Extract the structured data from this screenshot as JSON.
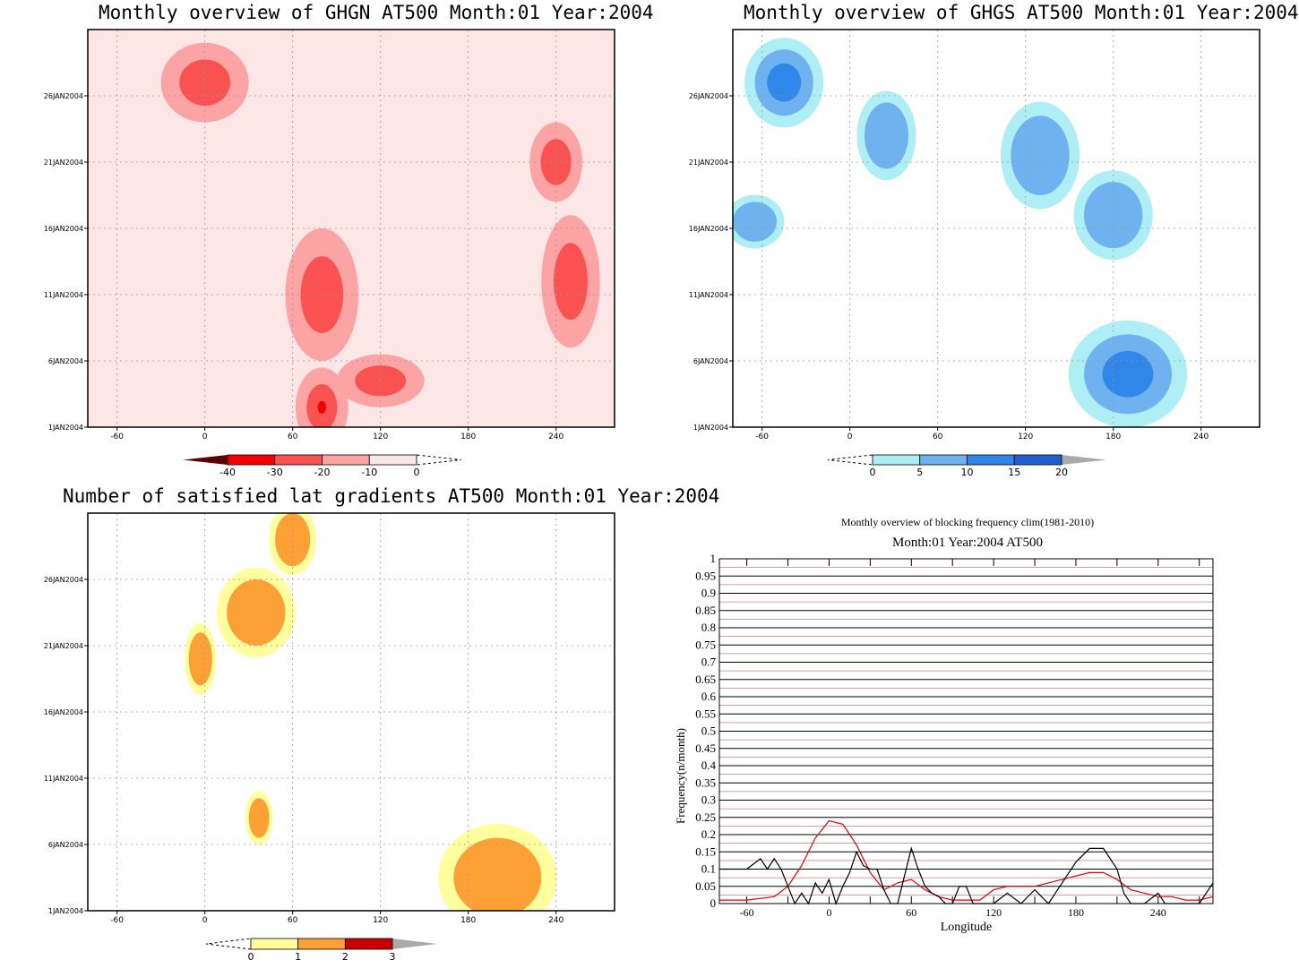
{
  "chart_data": [
    {
      "type": "heatmap",
      "title": "Monthly overview of GHGN AT500 Month:01 Year:2004",
      "x_ticks": [
        "-60",
        "0",
        "60",
        "120",
        "180",
        "240"
      ],
      "y_ticks": [
        "1JAN2004",
        "6JAN2004",
        "11JAN2004",
        "16JAN2004",
        "21JAN2004",
        "26JAN2004"
      ],
      "colorbar_ticks": [
        "-40",
        "-30",
        "-20",
        "-10",
        "0"
      ],
      "colors": [
        "#ffffff",
        "#fde6e6",
        "#fca3a3",
        "#fa5252",
        "#f50000",
        "#5a0000"
      ],
      "blobs": [
        {
          "x": 0,
          "y": 27,
          "rx": 30,
          "ry": 3,
          "level": 3
        },
        {
          "x": 80,
          "y": 11,
          "rx": 25,
          "ry": 5,
          "level": 3
        },
        {
          "x": 80,
          "y": 2.5,
          "rx": 18,
          "ry": 3,
          "level": 4
        },
        {
          "x": 250,
          "y": 12,
          "rx": 20,
          "ry": 5,
          "level": 3
        },
        {
          "x": 240,
          "y": 21,
          "rx": 18,
          "ry": 3,
          "level": 3
        },
        {
          "x": 120,
          "y": 4.5,
          "rx": 30,
          "ry": 2,
          "level": 3
        }
      ]
    },
    {
      "type": "heatmap",
      "title": "Monthly overview of GHGS AT500 Month:01 Year:2004",
      "x_ticks": [
        "-60",
        "0",
        "60",
        "120",
        "180",
        "240"
      ],
      "y_ticks": [
        "1JAN2004",
        "6JAN2004",
        "11JAN2004",
        "16JAN2004",
        "21JAN2004",
        "26JAN2004"
      ],
      "colorbar_ticks": [
        "0",
        "5",
        "10",
        "15",
        "20"
      ],
      "colors": [
        "#aeeef5",
        "#6fb2f0",
        "#3186ea",
        "#1f5fd0"
      ],
      "blobs": [
        {
          "x": -45,
          "y": 27,
          "rx": 20,
          "ry": 2.5,
          "level": 2
        },
        {
          "x": 25,
          "y": 23,
          "rx": 15,
          "ry": 2.5,
          "level": 1
        },
        {
          "x": 130,
          "y": 21.5,
          "rx": 20,
          "ry": 3,
          "level": 1
        },
        {
          "x": 180,
          "y": 17,
          "rx": 20,
          "ry": 2.5,
          "level": 1
        },
        {
          "x": -65,
          "y": 16.5,
          "rx": 15,
          "ry": 1.5,
          "level": 1
        },
        {
          "x": 190,
          "y": 5,
          "rx": 30,
          "ry": 3,
          "level": 2
        }
      ]
    },
    {
      "type": "heatmap",
      "title": "Number of satisfied lat gradients AT500 Month:01 Year:2004",
      "x_ticks": [
        "-60",
        "0",
        "60",
        "120",
        "180",
        "240"
      ],
      "y_ticks": [
        "1JAN2004",
        "6JAN2004",
        "11JAN2004",
        "16JAN2004",
        "21JAN2004",
        "26JAN2004"
      ],
      "colorbar_ticks": [
        "0",
        "1",
        "2",
        "3"
      ],
      "colors": [
        "#ffff9e",
        "#fda035",
        "#c80000"
      ],
      "blobs": [
        {
          "x": 35,
          "y": 23.5,
          "rx": 20,
          "ry": 2.5,
          "level": 1
        },
        {
          "x": -3,
          "y": 20,
          "rx": 8,
          "ry": 2,
          "level": 1
        },
        {
          "x": 200,
          "y": 3.5,
          "rx": 30,
          "ry": 3,
          "level": 1
        },
        {
          "x": 37,
          "y": 8,
          "rx": 7,
          "ry": 1.5,
          "level": 1
        },
        {
          "x": 60,
          "y": 29,
          "rx": 12,
          "ry": 2,
          "level": 1
        }
      ]
    },
    {
      "type": "line",
      "title": "Monthly overview of blocking frequency clim(1981-2010)",
      "subtitle": "Month:01 Year:2004  AT500",
      "xlabel": "Longitude",
      "ylabel": "Frequency(n/month)",
      "xlim": [
        -80,
        280
      ],
      "ylim": [
        0,
        1
      ],
      "x_ticks": [
        "-60",
        "0",
        "60",
        "120",
        "180",
        "240"
      ],
      "y_ticks": [
        "0",
        "0.05",
        "0.1",
        "0.15",
        "0.2",
        "0.25",
        "0.3",
        "0.35",
        "0.4",
        "0.45",
        "0.5",
        "0.55",
        "0.6",
        "0.65",
        "0.7",
        "0.75",
        "0.8",
        "0.85",
        "0.9",
        "0.95",
        "1"
      ],
      "series": [
        {
          "color": "#e00000",
          "x": [
            -80,
            -60,
            -40,
            -30,
            -20,
            -10,
            0,
            10,
            20,
            30,
            40,
            50,
            60,
            70,
            80,
            90,
            100,
            110,
            120,
            130,
            140,
            150,
            160,
            170,
            180,
            190,
            200,
            210,
            220,
            230,
            240,
            250,
            260,
            270,
            280
          ],
          "y": [
            0.01,
            0.01,
            0.02,
            0.05,
            0.11,
            0.19,
            0.24,
            0.23,
            0.17,
            0.09,
            0.04,
            0.06,
            0.07,
            0.04,
            0.02,
            0.01,
            0.01,
            0.01,
            0.04,
            0.05,
            0.05,
            0.05,
            0.06,
            0.07,
            0.08,
            0.09,
            0.09,
            0.07,
            0.04,
            0.03,
            0.02,
            0.02,
            0.01,
            0.01,
            0.02
          ]
        },
        {
          "color": "#000000",
          "x": [
            -80,
            -60,
            -50,
            -45,
            -40,
            -35,
            -30,
            -25,
            -20,
            -15,
            -10,
            -5,
            0,
            5,
            10,
            15,
            20,
            25,
            30,
            35,
            40,
            45,
            50,
            55,
            60,
            65,
            70,
            75,
            80,
            85,
            90,
            95,
            100,
            105,
            110,
            120,
            130,
            140,
            150,
            160,
            170,
            180,
            190,
            200,
            210,
            215,
            220,
            230,
            240,
            245,
            250,
            260,
            270,
            280
          ],
          "y": [
            0.1,
            0.1,
            0.13,
            0.1,
            0.13,
            0.1,
            0.05,
            0,
            0.03,
            0,
            0.06,
            0.03,
            0.07,
            0,
            0.05,
            0.09,
            0.15,
            0.11,
            0.1,
            0.1,
            0.04,
            0,
            0,
            0.08,
            0.16,
            0.1,
            0.05,
            0.03,
            0.02,
            0,
            0,
            0.05,
            0.05,
            0,
            0,
            0,
            0.03,
            0,
            0.04,
            0,
            0.06,
            0.12,
            0.16,
            0.16,
            0.1,
            0.03,
            0,
            0,
            0.03,
            0,
            0,
            0,
            0,
            0.06
          ]
        }
      ]
    }
  ]
}
